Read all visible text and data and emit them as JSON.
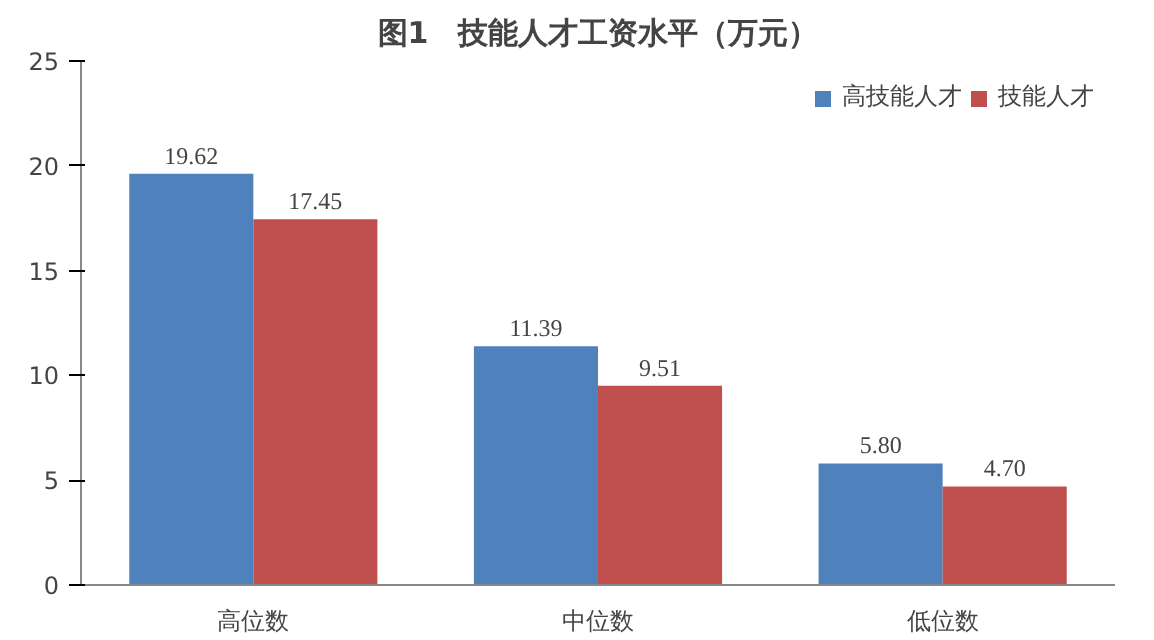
{
  "chart_data": {
    "type": "bar",
    "title": "图1　技能人才工资水平（万元）",
    "categories": [
      "高位数",
      "中位数",
      "低位数"
    ],
    "series": [
      {
        "name": "高技能人才",
        "color": "#4f81bd",
        "values": [
          19.62,
          11.39,
          5.8
        ],
        "value_labels": [
          "19.62",
          "11.39",
          "5.80"
        ]
      },
      {
        "name": "技能人才",
        "color": "#c0504d",
        "values": [
          17.45,
          9.51,
          4.7
        ],
        "value_labels": [
          "17.45",
          "9.51",
          "4.70"
        ]
      }
    ],
    "ylim": [
      0,
      25
    ],
    "yticks": [
      0,
      5,
      10,
      15,
      20,
      25
    ],
    "grid": false,
    "legend": "top right"
  }
}
